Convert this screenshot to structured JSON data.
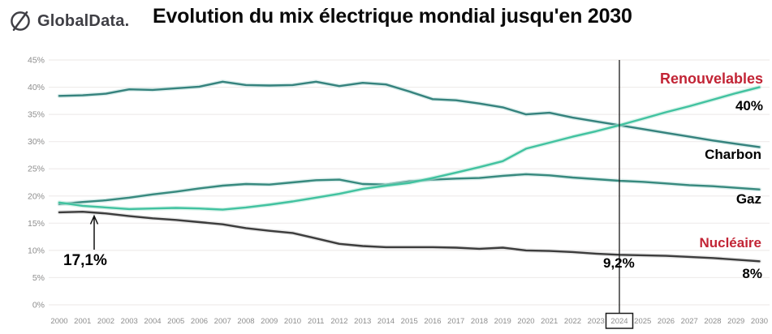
{
  "header": {
    "logo_text": "GlobalData.",
    "title": "Evolution du mix électrique mondial jusqu'en 2030"
  },
  "colors": {
    "accent_red": "#c22435",
    "black_label": "#000000",
    "grid": "#efeceb",
    "axis_text": "#8d8d8d",
    "marker_line": "#1a1a1a",
    "logo": "#3f3f45"
  },
  "chart_data": {
    "type": "line",
    "title": "Evolution du mix électrique mondial jusqu'en 2030",
    "xlabel": "",
    "ylabel": "",
    "ylim": [
      0,
      45
    ],
    "grid": "horizontal",
    "legend_position": "inline-right",
    "highlight_year": 2024,
    "x": [
      2000,
      2001,
      2002,
      2003,
      2004,
      2005,
      2006,
      2007,
      2008,
      2009,
      2010,
      2011,
      2012,
      2013,
      2014,
      2015,
      2016,
      2017,
      2018,
      2019,
      2020,
      2021,
      2022,
      2023,
      2024,
      2025,
      2026,
      2027,
      2028,
      2029,
      2030
    ],
    "x_tick_labels": [
      "2000",
      "2001",
      "2002",
      "2003",
      "2004",
      "2005",
      "2006",
      "2007",
      "2008",
      "2009",
      "2010",
      "2011",
      "2012",
      "2013",
      "2014",
      "2015",
      "2016",
      "2017",
      "2018",
      "2019",
      "2020",
      "2021",
      "2022",
      "2023",
      "2024",
      "2025",
      "2026",
      "2027",
      "2028",
      "2029",
      "2030"
    ],
    "y_ticks": [
      0,
      5,
      10,
      15,
      20,
      25,
      30,
      35,
      40,
      45
    ],
    "y_tick_labels": [
      "0%",
      "5%",
      "10%",
      "15%",
      "20%",
      "25%",
      "30%",
      "35%",
      "40%",
      "45%"
    ],
    "series": [
      {
        "id": "charbon",
        "name": "Charbon",
        "color": "#35827d",
        "halo": "#bfe0dc",
        "values": [
          38.4,
          38.5,
          38.8,
          39.6,
          39.5,
          39.8,
          40.1,
          41.0,
          40.4,
          40.3,
          40.4,
          41.0,
          40.2,
          40.8,
          40.5,
          39.2,
          37.8,
          37.6,
          37.0,
          36.3,
          35.0,
          35.3,
          34.4,
          33.7,
          33.0,
          32.3,
          31.6,
          30.9,
          30.2,
          29.6,
          29.0
        ]
      },
      {
        "id": "gaz",
        "name": "Gaz",
        "color": "#37897e",
        "halo": "#bfe0dc",
        "values": [
          18.5,
          18.9,
          19.2,
          19.7,
          20.3,
          20.8,
          21.4,
          21.9,
          22.2,
          22.1,
          22.5,
          22.9,
          23.0,
          22.2,
          22.1,
          22.7,
          23.0,
          23.2,
          23.3,
          23.7,
          24.0,
          23.8,
          23.4,
          23.1,
          22.8,
          22.6,
          22.3,
          22.0,
          21.8,
          21.5,
          21.2
        ]
      },
      {
        "id": "renouvelables",
        "name": "Renouvelables",
        "color": "#41c2a0",
        "halo": "#b9ead9",
        "values": [
          18.8,
          18.2,
          17.9,
          17.6,
          17.7,
          17.8,
          17.7,
          17.5,
          17.9,
          18.4,
          19.0,
          19.7,
          20.4,
          21.3,
          21.9,
          22.4,
          23.3,
          24.3,
          25.3,
          26.4,
          28.7,
          29.8,
          30.9,
          31.9,
          33.0,
          34.2,
          35.4,
          36.5,
          37.7,
          38.9,
          40.0
        ]
      },
      {
        "id": "nucleaire",
        "name": "Nucléaire",
        "color": "#3c3c3c",
        "halo": "#d4d4d4",
        "values": [
          17.0,
          17.1,
          16.8,
          16.3,
          15.9,
          15.6,
          15.2,
          14.8,
          14.1,
          13.6,
          13.2,
          12.2,
          11.2,
          10.8,
          10.6,
          10.6,
          10.6,
          10.5,
          10.3,
          10.5,
          10.0,
          9.9,
          9.7,
          9.4,
          9.2,
          9.1,
          9.0,
          8.8,
          8.6,
          8.3,
          8.0
        ]
      }
    ],
    "annotations": {
      "renouvelables_2030": "40%",
      "nucleaire_2030": "8%",
      "nucleaire_2024": "9,2%",
      "nucleaire_2001": "17,1%"
    }
  }
}
